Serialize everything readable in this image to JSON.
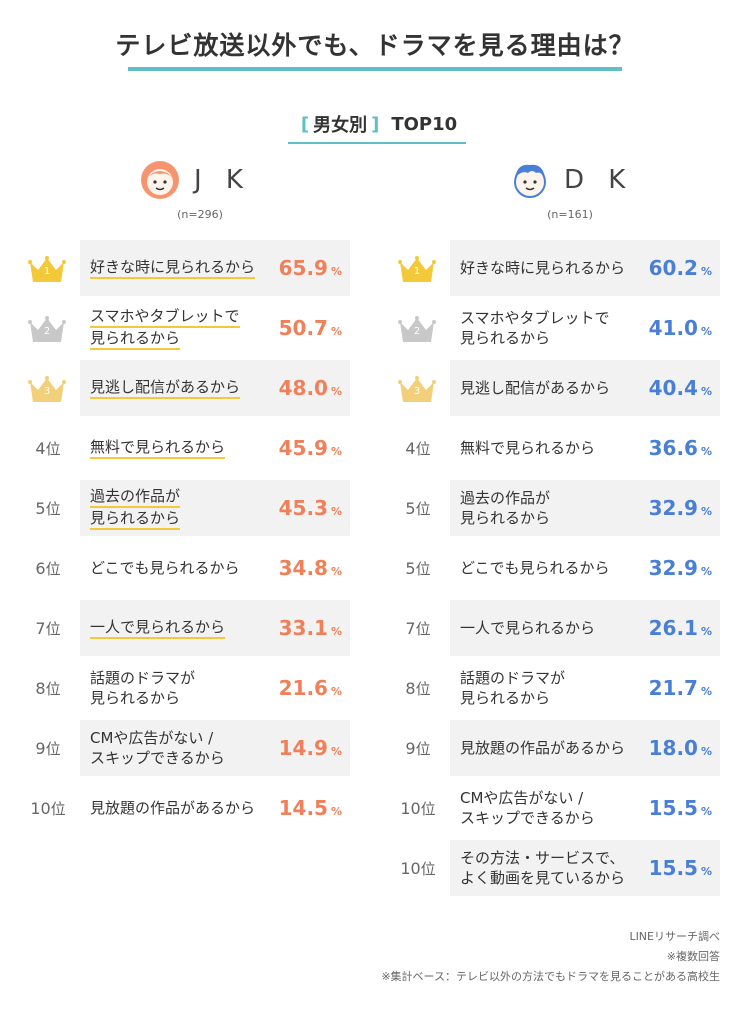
{
  "title": "テレビ放送以外でも、ドラマを見る理由は？",
  "subtitle": {
    "open": "[",
    "category": "男女別",
    "close": "]",
    "top": "TOP10"
  },
  "colors": {
    "accent": "#5fbfc6",
    "jk": "#f0805a",
    "dk": "#4a7fd6",
    "gold": "#f3c93a",
    "silver": "#c8c8c8",
    "bronze": "#f2cf7a"
  },
  "percent_sign": "%",
  "jk": {
    "name": "J K",
    "n": "(n=296)",
    "avatar_icon": "girl-face-icon",
    "rows": [
      {
        "rank": "1",
        "suffix": "",
        "crown": "gold",
        "lines": [
          "好きな時に見られるから"
        ],
        "value": "65.9",
        "underline": true
      },
      {
        "rank": "2",
        "suffix": "",
        "crown": "silver",
        "lines": [
          "スマホやタブレットで",
          "見られるから"
        ],
        "value": "50.7",
        "underline": true
      },
      {
        "rank": "3",
        "suffix": "",
        "crown": "bronze",
        "lines": [
          "見逃し配信があるから"
        ],
        "value": "48.0",
        "underline": true
      },
      {
        "rank": "4",
        "suffix": "位",
        "crown": "",
        "lines": [
          "無料で見られるから"
        ],
        "value": "45.9",
        "underline": true
      },
      {
        "rank": "5",
        "suffix": "位",
        "crown": "",
        "lines": [
          "過去の作品が",
          "見られるから"
        ],
        "value": "45.3",
        "underline": true
      },
      {
        "rank": "6",
        "suffix": "位",
        "crown": "",
        "lines": [
          "どこでも見られるから"
        ],
        "value": "34.8",
        "underline": false
      },
      {
        "rank": "7",
        "suffix": "位",
        "crown": "",
        "lines": [
          "一人で見られるから"
        ],
        "value": "33.1",
        "underline": true
      },
      {
        "rank": "8",
        "suffix": "位",
        "crown": "",
        "lines": [
          "話題のドラマが",
          "見られるから"
        ],
        "value": "21.6",
        "underline": false
      },
      {
        "rank": "9",
        "suffix": "位",
        "crown": "",
        "lines": [
          "CMや広告がない /",
          "スキップできるから"
        ],
        "value": "14.9",
        "underline": false
      },
      {
        "rank": "10",
        "suffix": "位",
        "crown": "",
        "lines": [
          "見放題の作品があるから"
        ],
        "value": "14.5",
        "underline": false
      }
    ]
  },
  "dk": {
    "name": "D K",
    "n": "(n=161)",
    "avatar_icon": "boy-face-icon",
    "rows": [
      {
        "rank": "1",
        "suffix": "",
        "crown": "gold",
        "lines": [
          "好きな時に見られるから"
        ],
        "value": "60.2",
        "underline": false
      },
      {
        "rank": "2",
        "suffix": "",
        "crown": "silver",
        "lines": [
          "スマホやタブレットで",
          "見られるから"
        ],
        "value": "41.0",
        "underline": false
      },
      {
        "rank": "3",
        "suffix": "",
        "crown": "bronze",
        "lines": [
          "見逃し配信があるから"
        ],
        "value": "40.4",
        "underline": false
      },
      {
        "rank": "4",
        "suffix": "位",
        "crown": "",
        "lines": [
          "無料で見られるから"
        ],
        "value": "36.6",
        "underline": false
      },
      {
        "rank": "5",
        "suffix": "位",
        "crown": "",
        "lines": [
          "過去の作品が",
          "見られるから"
        ],
        "value": "32.9",
        "underline": false
      },
      {
        "rank": "5",
        "suffix": "位",
        "crown": "",
        "lines": [
          "どこでも見られるから"
        ],
        "value": "32.9",
        "underline": false
      },
      {
        "rank": "7",
        "suffix": "位",
        "crown": "",
        "lines": [
          "一人で見られるから"
        ],
        "value": "26.1",
        "underline": false
      },
      {
        "rank": "8",
        "suffix": "位",
        "crown": "",
        "lines": [
          "話題のドラマが",
          "見られるから"
        ],
        "value": "21.7",
        "underline": false
      },
      {
        "rank": "9",
        "suffix": "位",
        "crown": "",
        "lines": [
          "見放題の作品があるから"
        ],
        "value": "18.0",
        "underline": false
      },
      {
        "rank": "10",
        "suffix": "位",
        "crown": "",
        "lines": [
          "CMや広告がない /",
          "スキップできるから"
        ],
        "value": "15.5",
        "underline": false
      },
      {
        "rank": "10",
        "suffix": "位",
        "crown": "",
        "lines": [
          "その方法・サービスで、",
          "よく動画を見ているから"
        ],
        "value": "15.5",
        "underline": false
      }
    ]
  },
  "notes": [
    "LINEリサーチ調べ",
    "※複数回答",
    "※集計ベース：テレビ以外の方法でもドラマを見ることがある高校生"
  ]
}
